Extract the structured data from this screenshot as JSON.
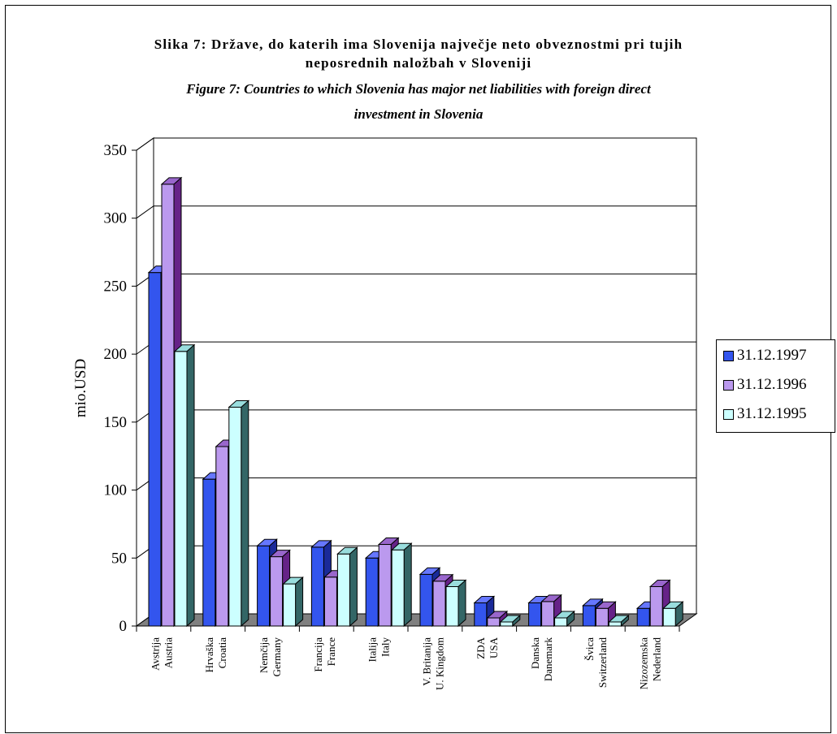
{
  "title": {
    "line1": "Slika 7: Države, do katerih ima Slovenija največje neto obveznostmi pri tujih",
    "line2": "neposrednih naložbah v Sloveniji",
    "line3": "Figure 7: Countries to which Slovenia has major net liabilities with foreign direct",
    "line4": "investment in Slovenia"
  },
  "chart_data": {
    "type": "bar",
    "ylabel": "mio.USD",
    "ylim": [
      0,
      350
    ],
    "yticks": [
      0,
      50,
      100,
      150,
      200,
      250,
      300,
      350
    ],
    "grid": true,
    "legend_position": "right",
    "categories": [
      [
        "Avstrija",
        "Austria"
      ],
      [
        "Hrvaška",
        "Croatia"
      ],
      [
        "Nemčija",
        "Germany"
      ],
      [
        "Francija",
        "France"
      ],
      [
        "Italija",
        "Italy"
      ],
      [
        "V. Britanija",
        "U. Kingdom"
      ],
      [
        "ZDA",
        "USA"
      ],
      [
        "Danska",
        "Danemark"
      ],
      [
        "Švica",
        "Switzerland"
      ],
      [
        "Nizozemska",
        "Nederland"
      ]
    ],
    "series": [
      {
        "name": "31.12.1997",
        "color": "#3355ee",
        "values": [
          260,
          108,
          59,
          58,
          50,
          38,
          17,
          17,
          15,
          13
        ]
      },
      {
        "name": "31.12.1996",
        "color": "#bb99ee",
        "values": [
          325,
          132,
          51,
          36,
          60,
          33,
          6,
          18,
          13,
          29
        ]
      },
      {
        "name": "31.12.1995",
        "color": "#ccffff",
        "values": [
          202,
          161,
          31,
          53,
          56,
          29,
          3,
          6,
          3,
          13
        ]
      }
    ]
  }
}
